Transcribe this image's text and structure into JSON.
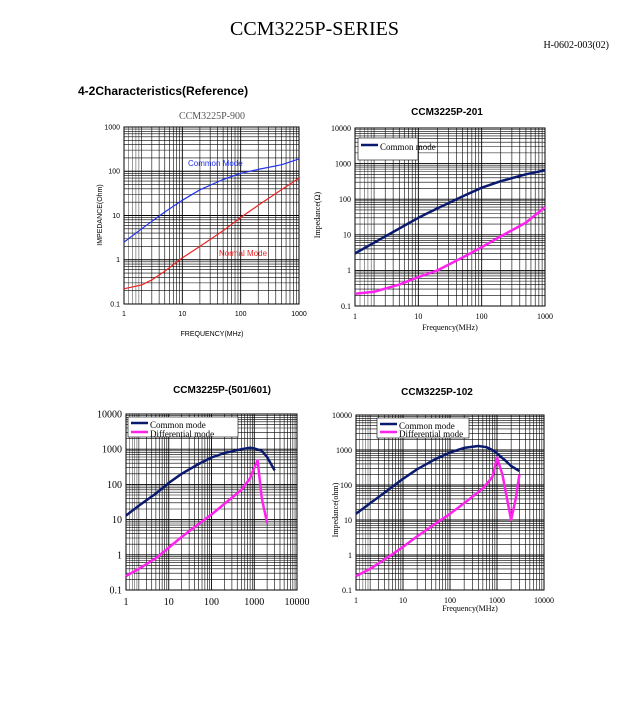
{
  "document": {
    "title": "CCM3225P-SERIES",
    "code": "H-0602-003(02)",
    "section_heading": "4-2Characteristics(Reference)"
  },
  "colors": {
    "common_900": "#2233ee",
    "normal_900": "#ee2222",
    "common": "#0a1a6e",
    "differential": "#ff22ee",
    "grid": "#000000"
  },
  "chart_data": [
    {
      "type": "line",
      "title": "CCM3225P-900",
      "xlabel": "FREQUENCY(MHz)",
      "ylabel": "IMPEDANCE(Ohm)",
      "x_scale": "log",
      "y_scale": "log",
      "xlim": [
        1,
        1000
      ],
      "ylim": [
        0.1,
        1000
      ],
      "x_ticks": [
        "1",
        "10",
        "100",
        "1000"
      ],
      "y_ticks": [
        "0.1",
        "1",
        "10",
        "100",
        "1000"
      ],
      "legend": "inline-labels",
      "series": [
        {
          "name": "Common Mode",
          "x": [
            1,
            2,
            5,
            10,
            20,
            50,
            100,
            200,
            500,
            1000
          ],
          "y": [
            2.5,
            5,
            12,
            22,
            38,
            65,
            90,
            110,
            140,
            190
          ]
        },
        {
          "name": "Normal Mode",
          "x": [
            1,
            2,
            3,
            5,
            10,
            20,
            50,
            100,
            200,
            500,
            1000
          ],
          "y": [
            0.22,
            0.27,
            0.35,
            0.55,
            1.1,
            2.0,
            4.5,
            9,
            17,
            38,
            70
          ]
        }
      ]
    },
    {
      "type": "line",
      "title": "CCM3225P-201",
      "xlabel": "Frequency(MHz)",
      "ylabel": "Impedance(Ω)",
      "x_scale": "log",
      "y_scale": "log",
      "xlim": [
        1,
        1000
      ],
      "ylim": [
        0.1,
        10000
      ],
      "x_ticks": [
        "1",
        "10",
        "100",
        "1000"
      ],
      "y_ticks": [
        "0.1",
        "1",
        "10",
        "100",
        "1000",
        "10000"
      ],
      "legend": "top-left",
      "series": [
        {
          "name": "Common mode",
          "x": [
            1,
            2,
            5,
            10,
            20,
            50,
            100,
            200,
            500,
            1000
          ],
          "y": [
            3,
            6,
            15,
            30,
            55,
            120,
            210,
            320,
            500,
            650
          ]
        },
        {
          "name": "",
          "x": [
            1,
            2,
            5,
            10,
            20,
            50,
            100,
            200,
            500,
            1000
          ],
          "y": [
            0.22,
            0.25,
            0.4,
            0.65,
            1.0,
            2.3,
            4.5,
            9,
            22,
            60
          ]
        }
      ]
    },
    {
      "type": "line",
      "title": "CCM3225P-(501/601)",
      "xlabel": "",
      "ylabel": "",
      "x_scale": "log",
      "y_scale": "log",
      "xlim": [
        1,
        10000
      ],
      "ylim": [
        0.1,
        10000
      ],
      "x_ticks": [
        "1",
        "10",
        "100",
        "1000",
        "10000"
      ],
      "y_ticks": [
        "0.1",
        "1",
        "10",
        "100",
        "1000",
        "10000"
      ],
      "legend": "top-left",
      "series": [
        {
          "name": "Common mode",
          "x": [
            1,
            2,
            5,
            10,
            20,
            50,
            100,
            200,
            500,
            800,
            1000,
            1500,
            2000,
            3000
          ],
          "y": [
            13,
            25,
            55,
            110,
            200,
            380,
            580,
            780,
            1000,
            1100,
            1050,
            900,
            600,
            250
          ]
        },
        {
          "name": "Differential mode",
          "x": [
            1,
            2,
            5,
            10,
            20,
            50,
            100,
            200,
            500,
            800,
            1000,
            1200,
            1500,
            2000
          ],
          "y": [
            0.25,
            0.4,
            0.8,
            1.6,
            3.2,
            7.5,
            14,
            28,
            70,
            150,
            300,
            480,
            40,
            8
          ]
        }
      ]
    },
    {
      "type": "line",
      "title": "CCM3225P-102",
      "xlabel": "Frequency(MHz)",
      "ylabel": "Impedance(ohm)",
      "x_scale": "log",
      "y_scale": "log",
      "xlim": [
        1,
        10000
      ],
      "ylim": [
        0.1,
        10000
      ],
      "x_ticks": [
        "1",
        "10",
        "100",
        "1000",
        "10000"
      ],
      "y_ticks": [
        "0.1",
        "1",
        "10",
        "100",
        "1000",
        "10000"
      ],
      "legend": "top-left",
      "series": [
        {
          "name": "Common mode",
          "x": [
            1,
            2,
            5,
            10,
            20,
            50,
            100,
            200,
            400,
            600,
            800,
            1000,
            1500,
            2000,
            3000
          ],
          "y": [
            15,
            30,
            75,
            150,
            280,
            560,
            850,
            1150,
            1300,
            1200,
            1000,
            800,
            500,
            350,
            250
          ]
        },
        {
          "name": "Differential mode",
          "x": [
            1,
            2,
            5,
            10,
            20,
            50,
            100,
            200,
            500,
            800,
            1000,
            1300,
            2000,
            2500,
            3000
          ],
          "y": [
            0.25,
            0.4,
            0.9,
            1.7,
            3.4,
            8,
            15,
            30,
            80,
            170,
            600,
            200,
            10,
            40,
            200
          ]
        }
      ]
    }
  ]
}
